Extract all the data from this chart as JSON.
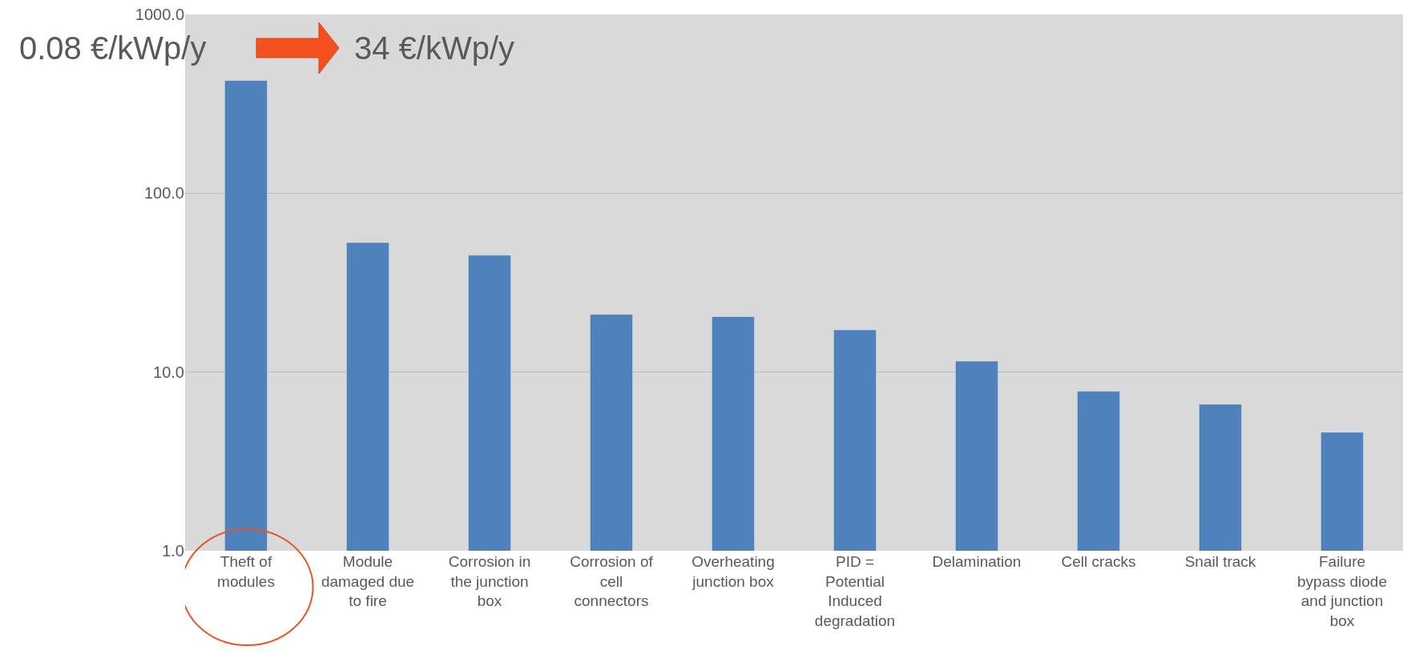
{
  "chart_data": {
    "type": "bar",
    "categories": [
      "Theft of modules",
      "Module damaged due to fire",
      "Corrosion in the junction box",
      "Corrosion of cell connectors",
      "Overheating junction box",
      "PID = Potential Induced degradation",
      "Delamination",
      "Cell cracks",
      "Snail track",
      "Failure bypass diode and junction box"
    ],
    "values": [
      427,
      53,
      45,
      21,
      20.4,
      17.2,
      11.5,
      7.8,
      6.6,
      4.6
    ],
    "color": "#4f81bd",
    "log": true,
    "ylim": [
      1,
      1000
    ],
    "yticks": [
      {
        "value": 1,
        "label": "1.0"
      },
      {
        "value": 10,
        "label": "10.0"
      },
      {
        "value": 100,
        "label": "100.0"
      },
      {
        "value": 1000,
        "label": "1000.0"
      }
    ],
    "grid": "y",
    "annotations": [
      "0.08 €/kWp/y",
      "34 €/kWp/y"
    ]
  }
}
